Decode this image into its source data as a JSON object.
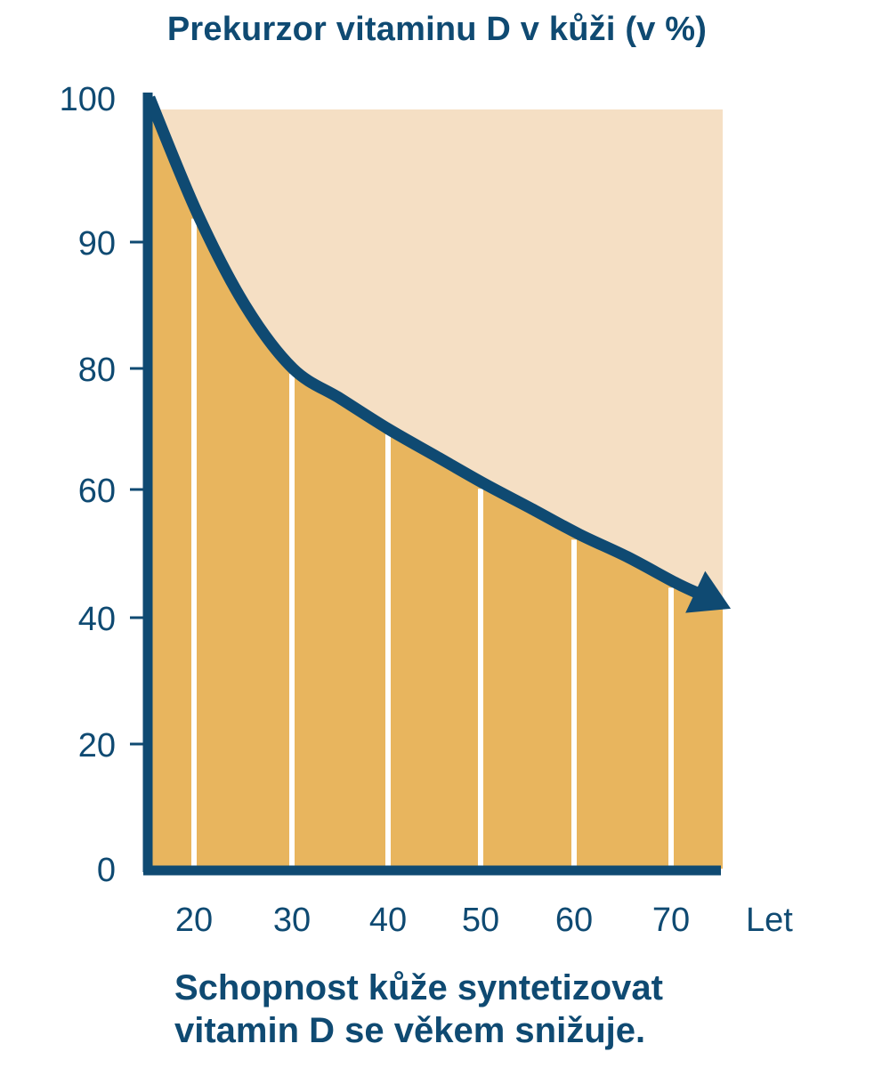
{
  "chart_data": {
    "type": "area",
    "title": "Prekurzor vitaminu D v kůži (v %)",
    "xlabel": "Let",
    "ylabel": "",
    "x_ticks": [
      "20",
      "30",
      "40",
      "50",
      "60",
      "70"
    ],
    "y_ticks": [
      "0",
      "20",
      "40",
      "60",
      "80",
      "90",
      "100"
    ],
    "xlim": [
      15,
      75
    ],
    "ylim": [
      0,
      100
    ],
    "series": [
      {
        "x": [
          15,
          20,
          25,
          30,
          35,
          40,
          45,
          50,
          55,
          60,
          65,
          70,
          75
        ],
        "y": [
          100,
          92,
          85,
          80,
          75,
          70,
          65.5,
          61,
          57,
          53,
          49.5,
          45.5,
          42
        ]
      }
    ],
    "bar_edges": [
      20,
      30,
      40,
      50,
      60,
      70
    ],
    "caption_lines": [
      "Schopnost kůže syntetizovat",
      "vitamin D se věkem snižuje."
    ],
    "colors": {
      "axis": "#0f4a72",
      "fill": "#e8b55e",
      "background_area": "#f5dfc4",
      "text": "#0f4a72",
      "divider": "#ffffff"
    }
  }
}
